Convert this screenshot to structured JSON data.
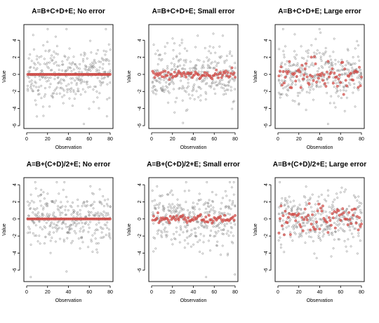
{
  "chart_data": [
    {
      "type": "scatter",
      "title": "A=B+C+D+E; No error",
      "xlabel": "Observation",
      "ylabel": "Value",
      "xlim": [
        0,
        80
      ],
      "ylim": [
        -6,
        5.5
      ],
      "xticks": [
        0,
        20,
        40,
        60,
        80
      ],
      "yticks": [
        -6,
        -4,
        -2,
        0,
        2,
        4
      ],
      "n": 80,
      "seed": 1,
      "estimate_noise": 0.0,
      "grey_spread": 1.6,
      "series": [
        {
          "marker": "open circle",
          "color": "#808080"
        },
        {
          "marker": "filled circle",
          "color": "#d9534f"
        }
      ]
    },
    {
      "type": "scatter",
      "title": "A=B+C+D+E; Small error",
      "xlabel": "Observation",
      "ylabel": "Value",
      "xlim": [
        0,
        80
      ],
      "ylim": [
        -6,
        5.5
      ],
      "xticks": [
        0,
        20,
        40,
        60,
        80
      ],
      "yticks": [
        -6,
        -4,
        -2,
        0,
        2,
        4
      ],
      "n": 80,
      "seed": 2,
      "estimate_noise": 0.28,
      "grey_spread": 1.6,
      "series": [
        {
          "marker": "open circle",
          "color": "#808080"
        },
        {
          "marker": "filled circle",
          "color": "#d9534f"
        }
      ]
    },
    {
      "type": "scatter",
      "title": "A=B+C+D+E; Large error",
      "xlabel": "Observation",
      "ylabel": "Value",
      "xlim": [
        0,
        80
      ],
      "ylim": [
        -6,
        5.5
      ],
      "xticks": [
        0,
        20,
        40,
        60,
        80
      ],
      "yticks": [
        -6,
        -4,
        -2,
        0,
        2,
        4
      ],
      "n": 80,
      "seed": 3,
      "estimate_noise": 0.75,
      "grey_spread": 1.6,
      "series": [
        {
          "marker": "open circle",
          "color": "#808080"
        },
        {
          "marker": "filled circle",
          "color": "#d9534f"
        }
      ]
    },
    {
      "type": "scatter",
      "title": "A=B+(C+D)/2+E; No error",
      "xlabel": "Observation",
      "ylabel": "Value",
      "xlim": [
        0,
        80
      ],
      "ylim": [
        -7,
        4.5
      ],
      "xticks": [
        0,
        20,
        40,
        60,
        80
      ],
      "yticks": [
        -6,
        -4,
        -2,
        0,
        2,
        4
      ],
      "n": 80,
      "seed": 4,
      "estimate_noise": 0.0,
      "grey_spread": 1.6,
      "series": [
        {
          "marker": "open circle",
          "color": "#808080"
        },
        {
          "marker": "filled circle",
          "color": "#d9534f"
        }
      ]
    },
    {
      "type": "scatter",
      "title": "A=B+(C+D)/2+E; Small error",
      "xlabel": "Observation",
      "ylabel": "Value",
      "xlim": [
        0,
        80
      ],
      "ylim": [
        -7,
        4.5
      ],
      "xticks": [
        0,
        20,
        40,
        60,
        80
      ],
      "yticks": [
        -6,
        -4,
        -2,
        0,
        2,
        4
      ],
      "n": 80,
      "seed": 5,
      "estimate_noise": 0.28,
      "grey_spread": 1.6,
      "series": [
        {
          "marker": "open circle",
          "color": "#808080"
        },
        {
          "marker": "filled circle",
          "color": "#d9534f"
        }
      ]
    },
    {
      "type": "scatter",
      "title": "A=B+(C+D)/2+E; Large error",
      "xlabel": "Observation",
      "ylabel": "Value",
      "xlim": [
        0,
        80
      ],
      "ylim": [
        -7,
        4.5
      ],
      "xticks": [
        0,
        20,
        40,
        60,
        80
      ],
      "yticks": [
        -6,
        -4,
        -2,
        0,
        2,
        4
      ],
      "n": 80,
      "seed": 6,
      "estimate_noise": 0.75,
      "grey_spread": 1.6,
      "series": [
        {
          "marker": "open circle",
          "color": "#808080"
        },
        {
          "marker": "filled circle",
          "color": "#d9534f"
        }
      ]
    }
  ]
}
